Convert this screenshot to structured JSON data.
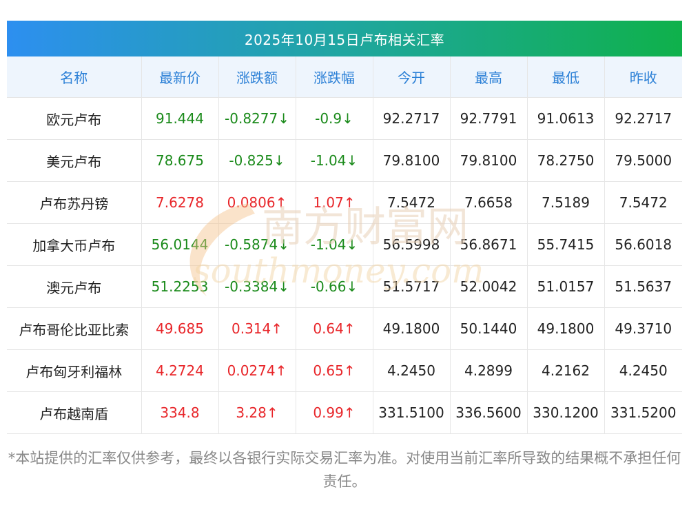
{
  "title": "2025年10月15日卢布相关汇率",
  "columns": [
    "名称",
    "最新价",
    "涨跌额",
    "涨跌幅",
    "今开",
    "最高",
    "最低",
    "昨收"
  ],
  "rows": [
    {
      "name": "欧元卢布",
      "latest": "91.444",
      "change": "-0.8277↓",
      "pct": "-0.9↓",
      "open": "92.2717",
      "high": "92.7791",
      "low": "91.0613",
      "prev": "92.2717",
      "trend": "down"
    },
    {
      "name": "美元卢布",
      "latest": "78.675",
      "change": "-0.825↓",
      "pct": "-1.04↓",
      "open": "79.8100",
      "high": "79.8100",
      "low": "78.2750",
      "prev": "79.5000",
      "trend": "down"
    },
    {
      "name": "卢布苏丹镑",
      "latest": "7.6278",
      "change": "0.0806↑",
      "pct": "1.07↑",
      "open": "7.5472",
      "high": "7.6658",
      "low": "7.5189",
      "prev": "7.5472",
      "trend": "up"
    },
    {
      "name": "加拿大币卢布",
      "latest": "56.0144",
      "change": "-0.5874↓",
      "pct": "-1.04↓",
      "open": "56.5998",
      "high": "56.8671",
      "low": "55.7415",
      "prev": "56.6018",
      "trend": "down"
    },
    {
      "name": "澳元卢布",
      "latest": "51.2253",
      "change": "-0.3384↓",
      "pct": "-0.66↓",
      "open": "51.5717",
      "high": "52.0042",
      "low": "51.0157",
      "prev": "51.5637",
      "trend": "down"
    },
    {
      "name": "卢布哥伦比亚比索",
      "latest": "49.685",
      "change": "0.314↑",
      "pct": "0.64↑",
      "open": "49.1800",
      "high": "50.1440",
      "low": "49.1800",
      "prev": "49.3710",
      "trend": "up"
    },
    {
      "name": "卢布匈牙利福林",
      "latest": "4.2724",
      "change": "0.0274↑",
      "pct": "0.65↑",
      "open": "4.2450",
      "high": "4.2899",
      "low": "4.2162",
      "prev": "4.2450",
      "trend": "up"
    },
    {
      "name": "卢布越南盾",
      "latest": "334.8",
      "change": "3.28↑",
      "pct": "0.99↑",
      "open": "331.5100",
      "high": "336.5600",
      "low": "330.1200",
      "prev": "331.5200",
      "trend": "up"
    }
  ],
  "footnote": "*本站提供的汇率仅供参考，最终以各银行实际交易汇率为准。对使用当前汇率所导致的结果概不承担任何责任。",
  "watermark": {
    "line1": "南方财富网",
    "line2": "southmoney.com"
  },
  "colors": {
    "up": "#e8262a",
    "down": "#1a8a1a",
    "header_text": "#2a7fd6",
    "title_start": "#2d8ff0",
    "title_end": "#0fb14b"
  }
}
